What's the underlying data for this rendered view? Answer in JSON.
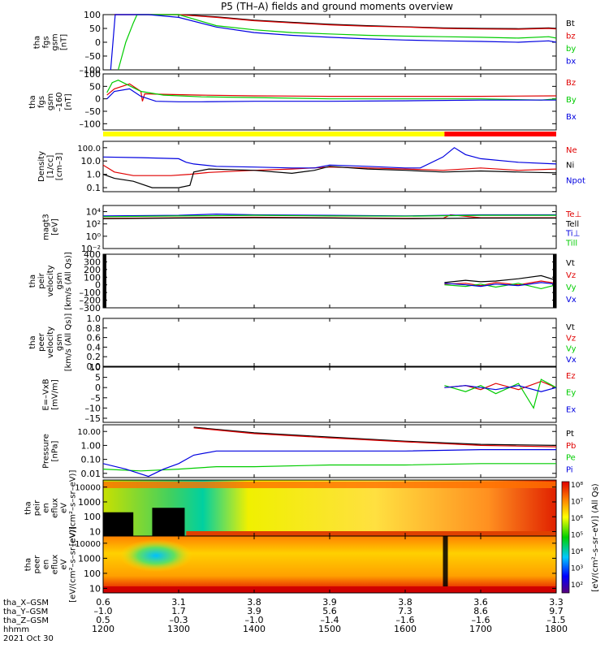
{
  "title": "P5 (TH–A) fields and ground moments overview",
  "colors": {
    "black": "#000000",
    "red": "#e00000",
    "green": "#00cc00",
    "blue": "#0000e0",
    "yellow": "#ffff00",
    "barred": "#ff0000"
  },
  "time_axis": {
    "ticks": [
      "1200",
      "1300",
      "1400",
      "1500",
      "1600",
      "1700",
      "1800"
    ],
    "xlim": [
      1200,
      1800
    ],
    "row_labels": [
      "tha_X–GSM",
      "tha_Y–GSM",
      "tha_Z–GSM",
      "hhmm",
      "2021 Oct 30"
    ],
    "x_gsm": [
      "0.6",
      "3.1",
      "3.8",
      "3.9",
      "3.8",
      "3.6",
      "3.3"
    ],
    "y_gsm": [
      "–1.0",
      "1.7",
      "3.9",
      "5.6",
      "7.3",
      "8.6",
      "9.7"
    ],
    "z_gsm": [
      "0.5",
      "–0.3",
      "–1.0",
      "–1.4",
      "–1.6",
      "–1.6",
      "–1.5"
    ]
  },
  "ephemeris_bar": {
    "segments": [
      {
        "from": 1200,
        "to": 1652,
        "color": "yellow"
      },
      {
        "from": 1652,
        "to": 1800,
        "color": "barred"
      }
    ]
  },
  "colorbar": {
    "label": "[eV/(cm²–s–sr–eV)] (All Qs)",
    "ticks": [
      "10⁸",
      "10⁷",
      "10⁶",
      "10⁵",
      "10⁴",
      "10³",
      "10²"
    ]
  },
  "chart_data": [
    {
      "type": "line",
      "ylabel": "tha\nfgs\ngsm\n[nT]",
      "ylim": [
        -100,
        100
      ],
      "yticks": [
        "100",
        "50",
        "0",
        "–50",
        "–100"
      ],
      "ytickvals": [
        100,
        50,
        0,
        -50,
        -100
      ],
      "series": [
        {
          "name": "Bt",
          "color": "black",
          "x": [
            1215,
            1230,
            1260,
            1300,
            1350,
            1400,
            1450,
            1500,
            1550,
            1600,
            1650,
            1700,
            1750,
            1790,
            1800
          ],
          "y": [
            100,
            100,
            100,
            100,
            92,
            80,
            72,
            65,
            60,
            56,
            52,
            50,
            49,
            52,
            50
          ]
        },
        {
          "name": "bz",
          "color": "red",
          "x": [
            1215,
            1230,
            1260,
            1300,
            1350,
            1400,
            1450,
            1500,
            1550,
            1600,
            1650,
            1700,
            1750,
            1790,
            1800
          ],
          "y": [
            100,
            100,
            100,
            100,
            90,
            78,
            70,
            63,
            58,
            55,
            50,
            48,
            47,
            50,
            48
          ]
        },
        {
          "name": "by",
          "color": "green",
          "x": [
            1220,
            1230,
            1240,
            1245,
            1260,
            1300,
            1350,
            1400,
            1450,
            1500,
            1550,
            1600,
            1650,
            1700,
            1750,
            1790,
            1800
          ],
          "y": [
            -100,
            0,
            70,
            100,
            100,
            100,
            60,
            45,
            35,
            30,
            25,
            22,
            20,
            18,
            15,
            20,
            15
          ]
        },
        {
          "name": "bx",
          "color": "blue",
          "x": [
            1210,
            1213,
            1216,
            1230,
            1260,
            1300,
            1350,
            1400,
            1450,
            1500,
            1550,
            1600,
            1650,
            1700,
            1750,
            1790,
            1800
          ],
          "y": [
            -100,
            0,
            100,
            100,
            100,
            90,
            55,
            35,
            25,
            18,
            12,
            8,
            5,
            3,
            0,
            5,
            0
          ]
        }
      ]
    },
    {
      "type": "line",
      "ylabel": "tha\nfgs\ngsm\n–160\n[nT]",
      "ylim": [
        -125,
        100
      ],
      "yticks": [
        "100",
        "50",
        "0",
        "–50",
        "–100"
      ],
      "ytickvals": [
        100,
        50,
        0,
        -50,
        -100
      ],
      "series": [
        {
          "name": "Bz",
          "color": "red",
          "x": [
            1205,
            1215,
            1235,
            1250,
            1252,
            1255,
            1280,
            1330,
            1400,
            1500,
            1600,
            1700,
            1800
          ],
          "y": [
            15,
            40,
            60,
            30,
            -10,
            20,
            18,
            15,
            12,
            10,
            10,
            10,
            12
          ]
        },
        {
          "name": "By",
          "color": "green",
          "x": [
            1205,
            1212,
            1220,
            1230,
            1250,
            1280,
            1330,
            1400,
            1500,
            1600,
            1700,
            1780,
            1800
          ],
          "y": [
            25,
            65,
            75,
            60,
            30,
            15,
            8,
            5,
            0,
            0,
            0,
            -5,
            0
          ]
        },
        {
          "name": "Bx",
          "color": "blue",
          "x": [
            1205,
            1215,
            1235,
            1250,
            1270,
            1300,
            1330,
            1400,
            1500,
            1600,
            1700,
            1800
          ],
          "y": [
            0,
            30,
            40,
            10,
            -10,
            -12,
            -12,
            -10,
            -10,
            -8,
            -5,
            -5
          ]
        }
      ]
    },
    {
      "type": "line",
      "scale": "log",
      "ylabel": "Density\n[1/cc]\n[cm–3]",
      "ylim": [
        0.05,
        300
      ],
      "yticks": [
        "100.0",
        "10.0",
        "1.0",
        "0.1"
      ],
      "ytickvals": [
        100,
        10,
        1,
        0.1
      ],
      "series": [
        {
          "name": "Ne",
          "color": "red",
          "x": [
            1200,
            1215,
            1240,
            1290,
            1315,
            1340,
            1400,
            1450,
            1500,
            1550,
            1600,
            1650,
            1700,
            1750,
            1800
          ],
          "y": [
            5,
            1.5,
            0.8,
            0.8,
            1.0,
            1.4,
            2.0,
            2.5,
            3.5,
            3.0,
            2.5,
            2.0,
            3.0,
            2.0,
            2.5
          ]
        },
        {
          "name": "Ni",
          "color": "black",
          "x": [
            1200,
            1215,
            1240,
            1265,
            1300,
            1315,
            1320,
            1340,
            1400,
            1450,
            1480,
            1500,
            1550,
            1600,
            1650,
            1700,
            1750,
            1800
          ],
          "y": [
            1.0,
            0.5,
            0.3,
            0.1,
            0.1,
            0.15,
            1.5,
            2.5,
            2.0,
            1.2,
            2.0,
            4.0,
            2.5,
            2.0,
            1.5,
            1.8,
            1.5,
            1.3
          ]
        },
        {
          "name": "Npot",
          "color": "blue",
          "x": [
            1200,
            1250,
            1300,
            1310,
            1320,
            1350,
            1400,
            1450,
            1480,
            1500,
            1550,
            1600,
            1620,
            1650,
            1665,
            1680,
            1700,
            1750,
            1800
          ],
          "y": [
            20,
            18,
            15,
            8,
            6,
            4,
            3.5,
            3,
            3,
            5,
            4,
            3,
            3,
            20,
            100,
            30,
            15,
            8,
            6
          ]
        }
      ]
    },
    {
      "type": "line",
      "scale": "log",
      "ylabel": "magt3\n[eV]",
      "ylim": [
        0.01,
        100000
      ],
      "yticks": [
        "10⁴",
        "10²",
        "10⁰",
        "10⁻²"
      ],
      "ytickvals": [
        10000,
        100,
        1,
        0.01
      ],
      "series": [
        {
          "name": "Te⊥",
          "color": "red",
          "x": [
            1200,
            1300,
            1400,
            1500,
            1600,
            1650,
            1660,
            1700,
            1800
          ],
          "y": [
            800,
            1000,
            1200,
            1000,
            800,
            800,
            3000,
            1000,
            1000
          ]
        },
        {
          "name": "Tell",
          "color": "black",
          "x": [
            1200,
            1300,
            1400,
            1500,
            1600,
            1700,
            1800
          ],
          "y": [
            700,
            900,
            1000,
            900,
            700,
            900,
            900
          ]
        },
        {
          "name": "Ti⊥",
          "color": "blue",
          "x": [
            1200,
            1300,
            1350,
            1400,
            1500,
            1600,
            1700,
            1800
          ],
          "y": [
            2000,
            2500,
            4000,
            3000,
            2500,
            2000,
            3000,
            3000
          ]
        },
        {
          "name": "Till",
          "color": "green",
          "x": [
            1200,
            1300,
            1400,
            1500,
            1600,
            1700,
            1800
          ],
          "y": [
            1500,
            2000,
            2500,
            2000,
            1800,
            2500,
            2500
          ]
        }
      ]
    },
    {
      "type": "line",
      "ylabel": "tha\npeir\nvelocity\ngsm\n[km/s (All Qs)]",
      "ylim": [
        -300,
        400
      ],
      "yticks": [
        "400",
        "300",
        "200",
        "100",
        "0",
        "–100",
        "–200",
        "–300"
      ],
      "ytickvals": [
        400,
        300,
        200,
        100,
        0,
        -100,
        -200,
        -300
      ],
      "series": [
        {
          "name": "Vt",
          "color": "black",
          "x": [
            1652,
            1680,
            1700,
            1720,
            1750,
            1780,
            1800
          ],
          "y": [
            30,
            60,
            40,
            50,
            80,
            120,
            60
          ]
        },
        {
          "name": "Vz",
          "color": "red",
          "x": [
            1652,
            1680,
            1700,
            1720,
            1750,
            1780,
            1800
          ],
          "y": [
            10,
            20,
            -10,
            30,
            0,
            50,
            20
          ]
        },
        {
          "name": "Vy",
          "color": "green",
          "x": [
            1652,
            1680,
            1700,
            1720,
            1750,
            1780,
            1800
          ],
          "y": [
            0,
            -20,
            10,
            -30,
            20,
            -50,
            0
          ]
        },
        {
          "name": "Vx",
          "color": "blue",
          "x": [
            1652,
            1680,
            1700,
            1720,
            1750,
            1780,
            1800
          ],
          "y": [
            20,
            0,
            -20,
            10,
            -10,
            30,
            10
          ]
        }
      ]
    },
    {
      "type": "line",
      "ylabel": "tha\npeer\nvelocity\ngsm\n[km/s (All Qs)]",
      "ylim": [
        0,
        1
      ],
      "yticks": [
        "1.0",
        "0.8",
        "0.6",
        "0.4",
        "0.2",
        "0.0"
      ],
      "ytickvals": [
        1,
        0.8,
        0.6,
        0.4,
        0.2,
        0
      ],
      "series": [
        {
          "name": "Vt",
          "color": "black",
          "x": [],
          "y": []
        },
        {
          "name": "Vz",
          "color": "red",
          "x": [],
          "y": []
        },
        {
          "name": "Vy",
          "color": "green",
          "x": [],
          "y": []
        },
        {
          "name": "Vx",
          "color": "blue",
          "x": [],
          "y": []
        }
      ]
    },
    {
      "type": "line",
      "ylabel": "E=–VxB\n[mV/m]",
      "ylim": [
        -17,
        10
      ],
      "yticks": [
        "10",
        "5",
        "0",
        "–5",
        "–10",
        "–15"
      ],
      "ytickvals": [
        10,
        5,
        0,
        -5,
        -10,
        -15
      ],
      "series": [
        {
          "name": "Ez",
          "color": "red",
          "x": [
            1652,
            1680,
            1700,
            1720,
            1750,
            1780,
            1800
          ],
          "y": [
            0,
            1,
            -1,
            2,
            -1,
            3,
            0
          ]
        },
        {
          "name": "Ey",
          "color": "green",
          "x": [
            1652,
            1680,
            1700,
            1720,
            1750,
            1770,
            1780,
            1800
          ],
          "y": [
            1,
            -2,
            1,
            -3,
            2,
            -10,
            4,
            0
          ]
        },
        {
          "name": "Ex",
          "color": "blue",
          "x": [
            1652,
            1680,
            1700,
            1720,
            1750,
            1780,
            1800
          ],
          "y": [
            0,
            1,
            0,
            -1,
            1,
            -2,
            0
          ]
        }
      ]
    },
    {
      "type": "line",
      "scale": "log",
      "ylabel": "Pressure\n[nPa]",
      "ylim": [
        0.005,
        30
      ],
      "yticks": [
        "10.00",
        "1.00",
        "0.10",
        "0.01"
      ],
      "ytickvals": [
        10,
        1,
        0.1,
        0.01
      ],
      "series": [
        {
          "name": "Pt",
          "color": "black",
          "x": [
            1320,
            1400,
            1500,
            1600,
            1700,
            1800
          ],
          "y": [
            20,
            8,
            4,
            2,
            1.2,
            1.0
          ]
        },
        {
          "name": "Pb",
          "color": "red",
          "x": [
            1320,
            1400,
            1500,
            1600,
            1700,
            1800
          ],
          "y": [
            18,
            7,
            3.5,
            1.8,
            1.0,
            0.8
          ]
        },
        {
          "name": "Pe",
          "color": "green",
          "x": [
            1200,
            1250,
            1300,
            1350,
            1400,
            1500,
            1600,
            1700,
            1800
          ],
          "y": [
            0.02,
            0.015,
            0.02,
            0.03,
            0.03,
            0.04,
            0.04,
            0.05,
            0.05
          ]
        },
        {
          "name": "Pi",
          "color": "blue",
          "x": [
            1200,
            1230,
            1260,
            1280,
            1300,
            1320,
            1350,
            1400,
            1500,
            1600,
            1700,
            1800
          ],
          "y": [
            0.05,
            0.02,
            0.006,
            0.02,
            0.05,
            0.2,
            0.4,
            0.4,
            0.4,
            0.4,
            0.5,
            0.5
          ]
        }
      ]
    },
    {
      "type": "heatmap",
      "ylabel": "tha\npeir\nen\neflux\neV\n[eV/(cm²–s–sr–eV)]",
      "ylim": [
        5,
        30000
      ],
      "yticks": [
        "10000",
        "1000",
        "100",
        "10"
      ],
      "ytickvals": [
        10000,
        1000,
        100,
        10
      ]
    },
    {
      "type": "heatmap",
      "ylabel": "tha\npeer\nen\neflux\neV\n[eV/(cm²–s–sr–eV)]",
      "ylim": [
        5,
        30000
      ],
      "yticks": [
        "10000",
        "1000",
        "100",
        "10"
      ],
      "ytickvals": [
        10000,
        1000,
        100,
        10
      ]
    }
  ]
}
